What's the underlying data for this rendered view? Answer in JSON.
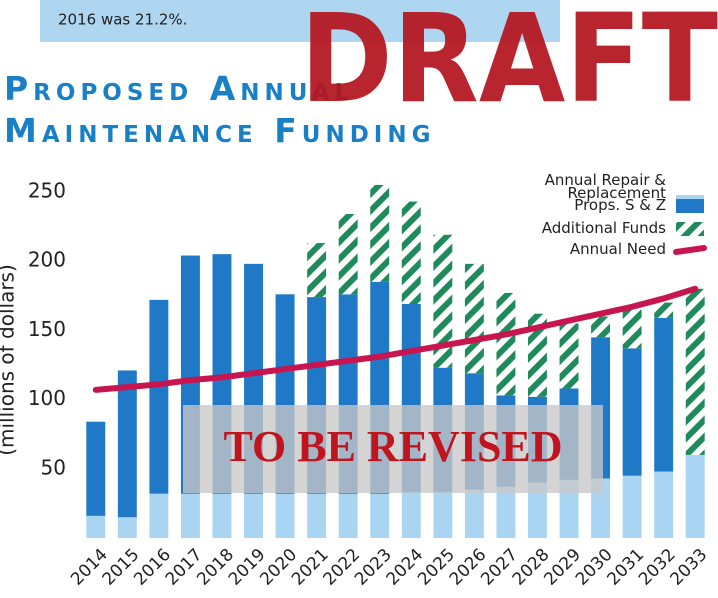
{
  "banner": "2016 was 21.2%.",
  "watermark": "DRAFT",
  "chart_data": {
    "type": "bar",
    "title": "Proposed Annual Maintenance Funding",
    "ylabel": "(millions of dollars)",
    "annotation": "TO BE REVISED",
    "stacked": true,
    "categories": [
      "2014",
      "2015",
      "2016",
      "2017",
      "2018",
      "2019",
      "2020",
      "2021",
      "2022",
      "2023",
      "2024",
      "2025",
      "2026",
      "2027",
      "2028",
      "2029",
      "2030",
      "2031",
      "2032",
      "2033"
    ],
    "series": [
      {
        "name": "Annual Repair & Replacement",
        "color": "#a9d5f2",
        "values": [
          16,
          15,
          32,
          32,
          32,
          32,
          32,
          32,
          32,
          32,
          33,
          33,
          35,
          37,
          40,
          42,
          43,
          45,
          48,
          60
        ]
      },
      {
        "name": "Props. S & Z",
        "color": "#1f79c6",
        "values": [
          68,
          106,
          140,
          172,
          173,
          166,
          144,
          142,
          144,
          153,
          136,
          90,
          84,
          66,
          62,
          66,
          102,
          92,
          111,
          0
        ]
      },
      {
        "name": "Additional Funds",
        "color": "#1f8a5b",
        "hatch": true,
        "values": [
          0,
          0,
          0,
          0,
          0,
          0,
          0,
          39,
          58,
          70,
          74,
          96,
          79,
          74,
          60,
          47,
          15,
          28,
          11,
          120
        ]
      },
      {
        "name": "Annual Need",
        "color": "#c8154f",
        "type": "line",
        "values": [
          107,
          109,
          111,
          114,
          116,
          119,
          122,
          125,
          128,
          131,
          135,
          139,
          143,
          147,
          152,
          157,
          162,
          167,
          173,
          180
        ]
      }
    ],
    "ylim": [
      0,
      260
    ],
    "yticks": [
      50,
      100,
      150,
      200,
      250
    ],
    "grid": false,
    "legend": "top-right"
  }
}
